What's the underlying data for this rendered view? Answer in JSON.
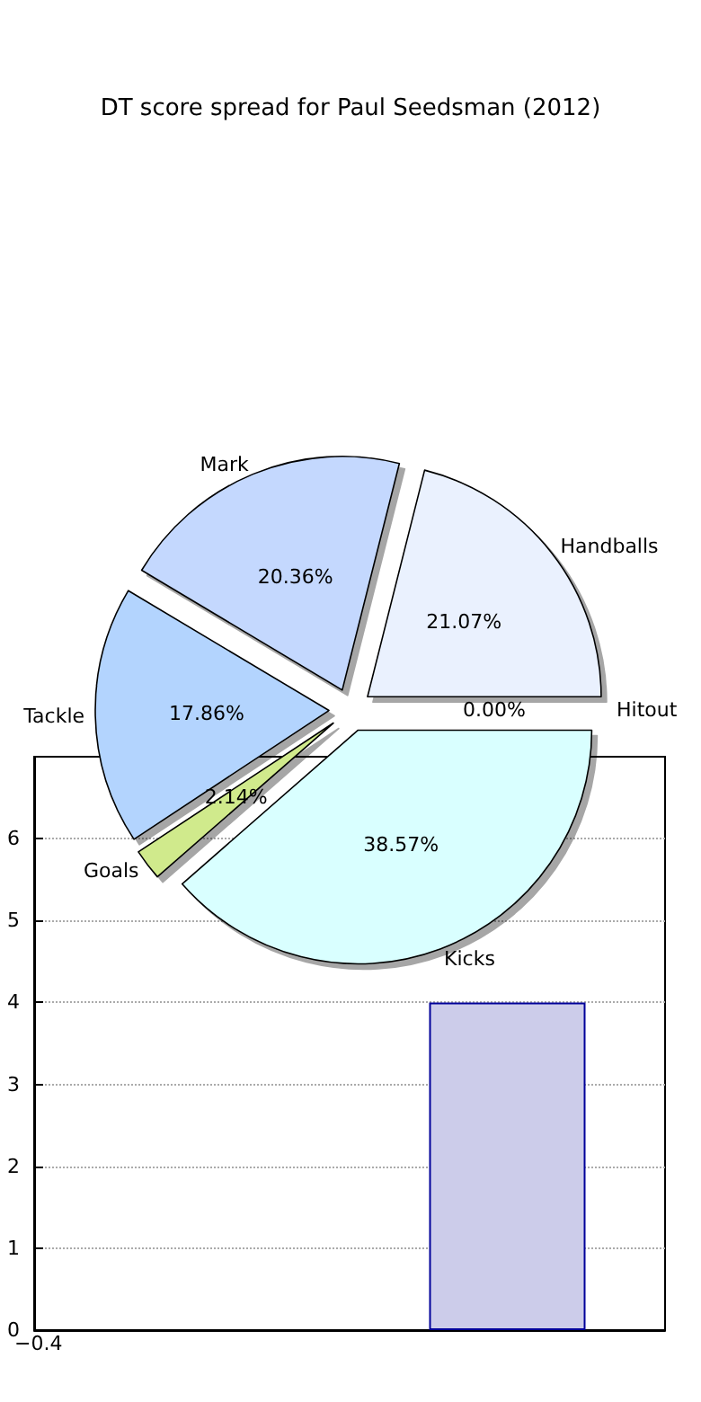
{
  "chart_data": [
    {
      "type": "bar",
      "categories": [
        null,
        null
      ],
      "values": [
        null,
        4
      ],
      "color": "#ccccea",
      "annotations": [
        "−0.4"
      ],
      "ylim": [
        0,
        7
      ],
      "yticks": [
        0,
        1,
        2,
        3,
        4,
        5,
        6
      ],
      "grid": "y",
      "legend": false
    },
    {
      "type": "pie",
      "title": "DT score spread for Paul Seedsman (2012)",
      "categories": [
        "Handballs",
        "Mark",
        "Tackle",
        "Goals",
        "Kicks",
        "Hitout"
      ],
      "values": [
        21.07,
        20.36,
        17.86,
        2.14,
        38.57,
        0.0
      ],
      "colors": [
        "#eaf1fe",
        "#c4d8fe",
        "#b3d4fe",
        "#d0ea8c",
        "#d9ffff",
        "#e6e6e6"
      ],
      "value_labels": [
        "21.07%",
        "20.36%",
        "17.86%",
        "2.14%",
        "38.57%",
        "0.00%"
      ],
      "legend": false
    }
  ]
}
